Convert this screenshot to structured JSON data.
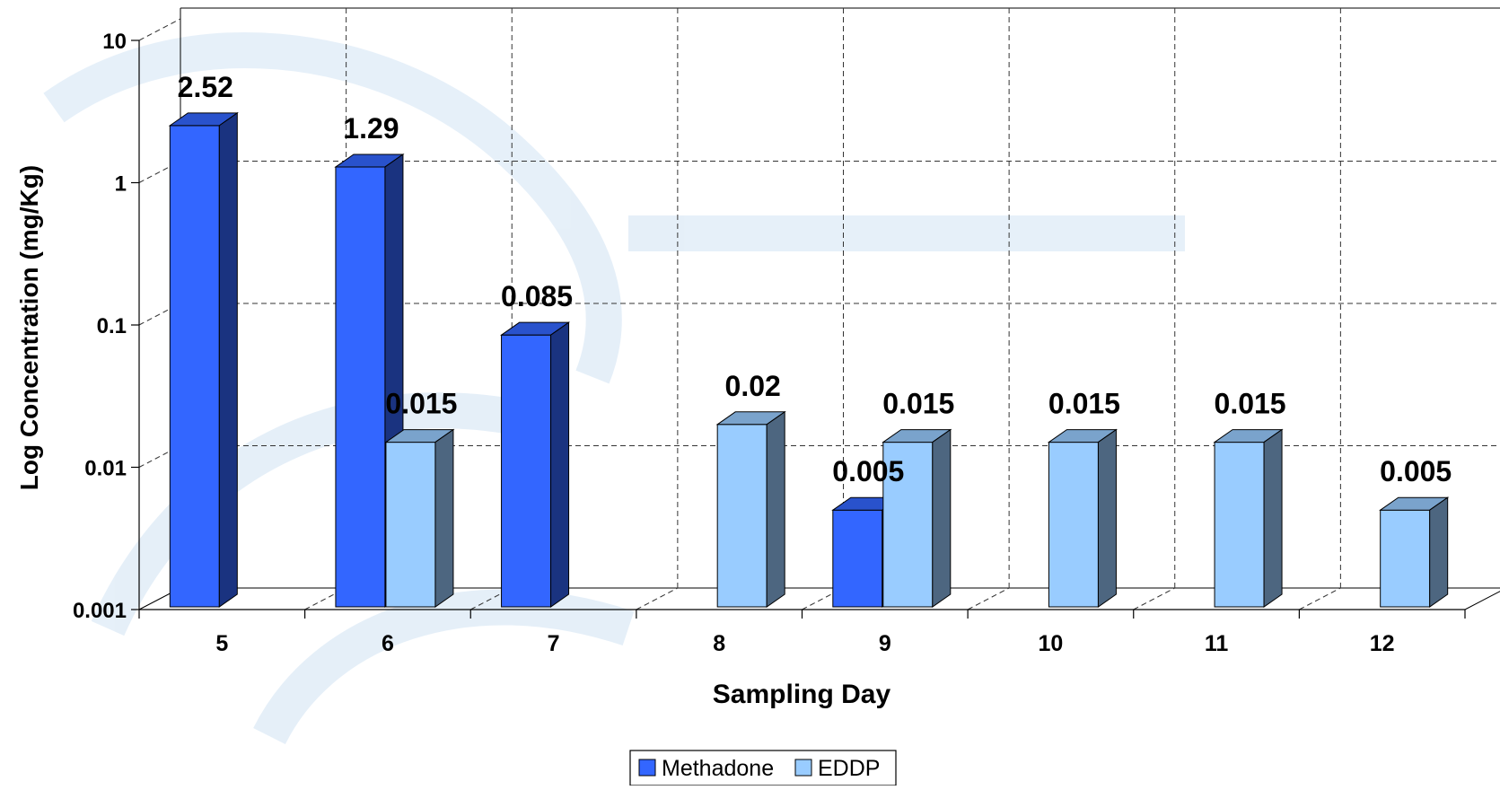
{
  "chart_data": {
    "type": "bar",
    "title": "",
    "xlabel": "Sampling Day",
    "ylabel": "Log Concentration (mg/Kg)",
    "yscale": "log",
    "ylim": [
      0.001,
      10
    ],
    "yticks": [
      "0.001",
      "0.01",
      "0.1",
      "1",
      "10"
    ],
    "categories": [
      "5",
      "6",
      "7",
      "8",
      "9",
      "10",
      "11",
      "12"
    ],
    "series": [
      {
        "name": "Methadone",
        "color": "#3366ff",
        "values": [
          2.52,
          1.29,
          0.085,
          null,
          0.005,
          null,
          null,
          null
        ],
        "labels": [
          "2.52",
          "1.29",
          "0.085",
          "",
          "0.005",
          "",
          "",
          ""
        ]
      },
      {
        "name": "EDDP",
        "color": "#99ccff",
        "values": [
          null,
          0.015,
          null,
          0.02,
          0.015,
          0.015,
          0.015,
          0.005
        ],
        "labels": [
          "",
          "0.015",
          "",
          "0.02",
          "0.015",
          "0.015",
          "0.015",
          "0.005"
        ]
      }
    ],
    "grid": true,
    "legend_position": "bottom"
  }
}
